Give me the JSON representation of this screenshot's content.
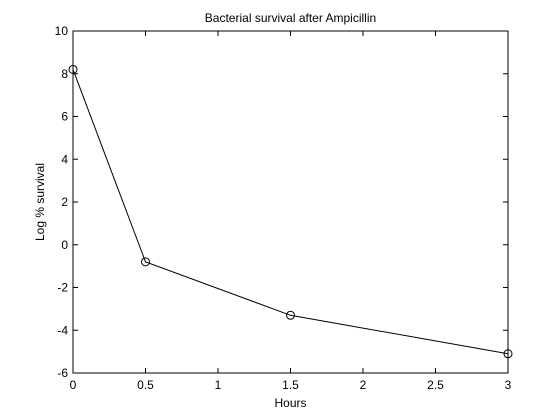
{
  "chart_data": {
    "type": "line",
    "title": "Bacterial survival after Ampicillin",
    "xlabel": "Hours",
    "ylabel": "Log % survival",
    "xlim": [
      0,
      3
    ],
    "ylim": [
      -6,
      10
    ],
    "xticks": [
      0,
      0.5,
      1,
      1.5,
      2,
      2.5,
      3
    ],
    "xtick_labels": [
      "0",
      "0.5",
      "1",
      "1.5",
      "2",
      "2.5",
      "3"
    ],
    "yticks": [
      -6,
      -4,
      -2,
      0,
      2,
      4,
      6,
      8,
      10
    ],
    "ytick_labels": [
      "-6",
      "-4",
      "-2",
      "0",
      "2",
      "4",
      "6",
      "8",
      "10"
    ],
    "grid": false,
    "legend": "none",
    "series": [
      {
        "x": [
          0,
          0.5,
          1.5,
          3
        ],
        "y": [
          8.2,
          -0.8,
          -3.3,
          -5.1
        ],
        "color": "#000000",
        "marker": "open-circle"
      }
    ]
  }
}
